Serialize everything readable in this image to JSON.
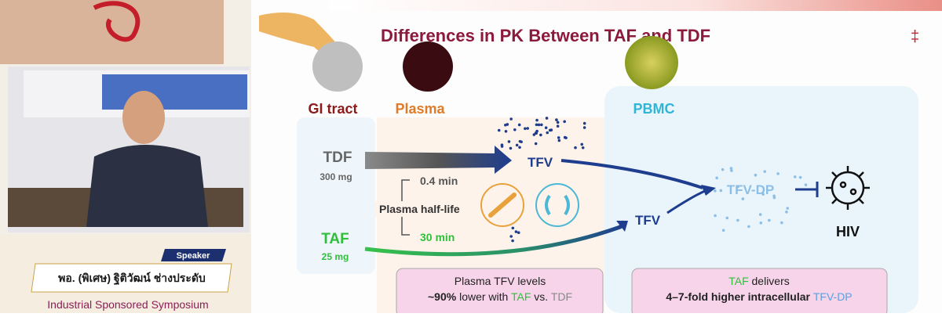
{
  "sidebar": {
    "role": "Speaker",
    "speaker_name": "พอ. (พิเศษ) ฐิติวัฒน์ ช่างประดับ",
    "event": "Industrial Sponsored Symposium"
  },
  "slide": {
    "title": "Differences in PK Between TAF and TDF",
    "mark": "‡",
    "compartments": [
      "GI tract",
      "Plasma",
      "PBMC"
    ],
    "drugs": [
      {
        "name": "TDF",
        "dose": "300 mg"
      },
      {
        "name": "TAF",
        "dose": "25 mg"
      }
    ],
    "metabolites": [
      "TFV",
      "TFV",
      "TFV-DP"
    ],
    "target": "HIV",
    "half_life": {
      "label": "Plasma half-life",
      "tdf": "0.4 min",
      "taf": "30 min"
    },
    "callouts": [
      {
        "lines": [
          [
            "Plasma TFV levels"
          ],
          [
            "~90%",
            " lower with ",
            "TAF",
            " vs. ",
            "TDF"
          ]
        ]
      },
      {
        "lines": [
          [
            "TAF",
            " delivers"
          ],
          [
            "4–7",
            "-fold higher intracellular ",
            "TFV-DP"
          ]
        ]
      }
    ]
  }
}
